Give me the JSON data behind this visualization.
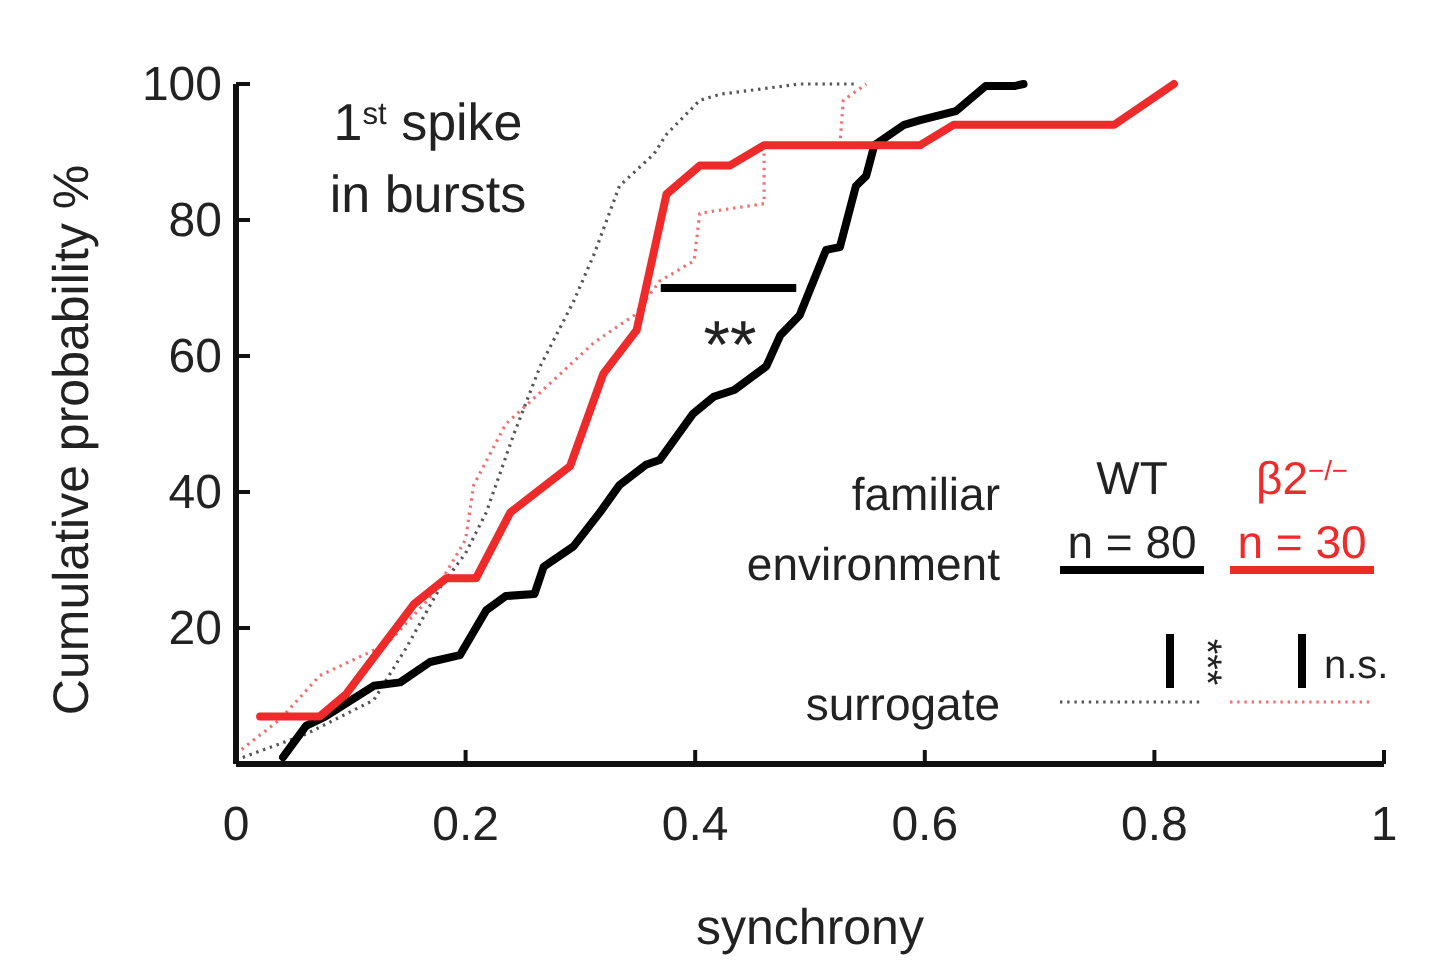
{
  "chart_data": {
    "type": "line",
    "xlabel": "synchrony",
    "ylabel": "Cumulative probability %",
    "xlim": [
      0,
      1
    ],
    "ylim": [
      0,
      100
    ],
    "xticks": [
      0,
      0.2,
      0.4,
      0.6,
      0.8,
      1
    ],
    "yticks": [
      {
        "value": 0,
        "label": null
      },
      20,
      40,
      60,
      80,
      100
    ],
    "grid": false,
    "legend": "bottom right",
    "series": [
      {
        "name": "WT",
        "color": "#000000",
        "line_style": "solid",
        "x": [
          0.041,
          0.061,
          0.078,
          0.12,
          0.143,
          0.169,
          0.195,
          0.218,
          0.235,
          0.26,
          0.268,
          0.294,
          0.317,
          0.334,
          0.357,
          0.369,
          0.398,
          0.416,
          0.434,
          0.462,
          0.474,
          0.491,
          0.514,
          0.526,
          0.54,
          0.549,
          0.556,
          0.582,
          0.596,
          0.627,
          0.653,
          0.678,
          0.686
        ],
        "values": [
          1,
          5.6,
          7,
          11.5,
          12,
          15,
          16,
          22.6,
          24.7,
          25,
          29,
          32,
          37,
          41,
          44,
          44.7,
          51.5,
          54,
          55,
          58.5,
          63,
          66,
          75.6,
          76,
          85,
          86.5,
          91,
          94,
          94.7,
          96,
          99.7,
          99.7,
          100
        ]
      },
      {
        "name": "β2$^{−/−}$",
        "color": "#ee2a2a",
        "line_style": "solid",
        "x": [
          0.021,
          0.073,
          0.096,
          0.155,
          0.183,
          0.209,
          0.239,
          0.291,
          0.32,
          0.349,
          0.375,
          0.404,
          0.43,
          0.46,
          0.596,
          0.625,
          0.765,
          0.817
        ],
        "values": [
          7,
          7,
          10.3,
          23.5,
          27.3,
          27.3,
          37,
          43.8,
          57.4,
          63.8,
          83.8,
          88,
          88,
          91,
          91,
          94,
          94,
          100
        ]
      },
      {
        "color": "#555555",
        "line_style": "dotted",
        "x": [
          0,
          0.061,
          0.12,
          0.148,
          0.178,
          0.2,
          0.218,
          0.242,
          0.265,
          0.294,
          0.312,
          0.334,
          0.364,
          0.375,
          0.404,
          0.422,
          0.491,
          0.54
        ],
        "values": [
          0.6,
          4.4,
          9.4,
          17,
          26,
          31,
          37,
          48.5,
          58.5,
          68,
          75,
          85,
          89.7,
          92.6,
          97.6,
          98.5,
          100,
          100
        ]
      },
      {
        "color": "#f07070",
        "line_style": "dotted",
        "x": [
          0,
          0.038,
          0.073,
          0.131,
          0.172,
          0.2,
          0.207,
          0.235,
          0.277,
          0.312,
          0.347,
          0.369,
          0.399,
          0.404,
          0.46,
          0.46,
          0.526,
          0.529,
          0.549
        ],
        "values": [
          1.5,
          6.5,
          13,
          17.6,
          25,
          33,
          41,
          50,
          56.5,
          62,
          66,
          71,
          74,
          81,
          82.4,
          91,
          91,
          97.6,
          100
        ]
      }
    ],
    "annotations": [
      "1$^{st}$ spike\nin bursts",
      "**",
      "familiar\nenvironment",
      "surrogate",
      "n = 80",
      "n = 30",
      "***",
      "n.s."
    ]
  }
}
